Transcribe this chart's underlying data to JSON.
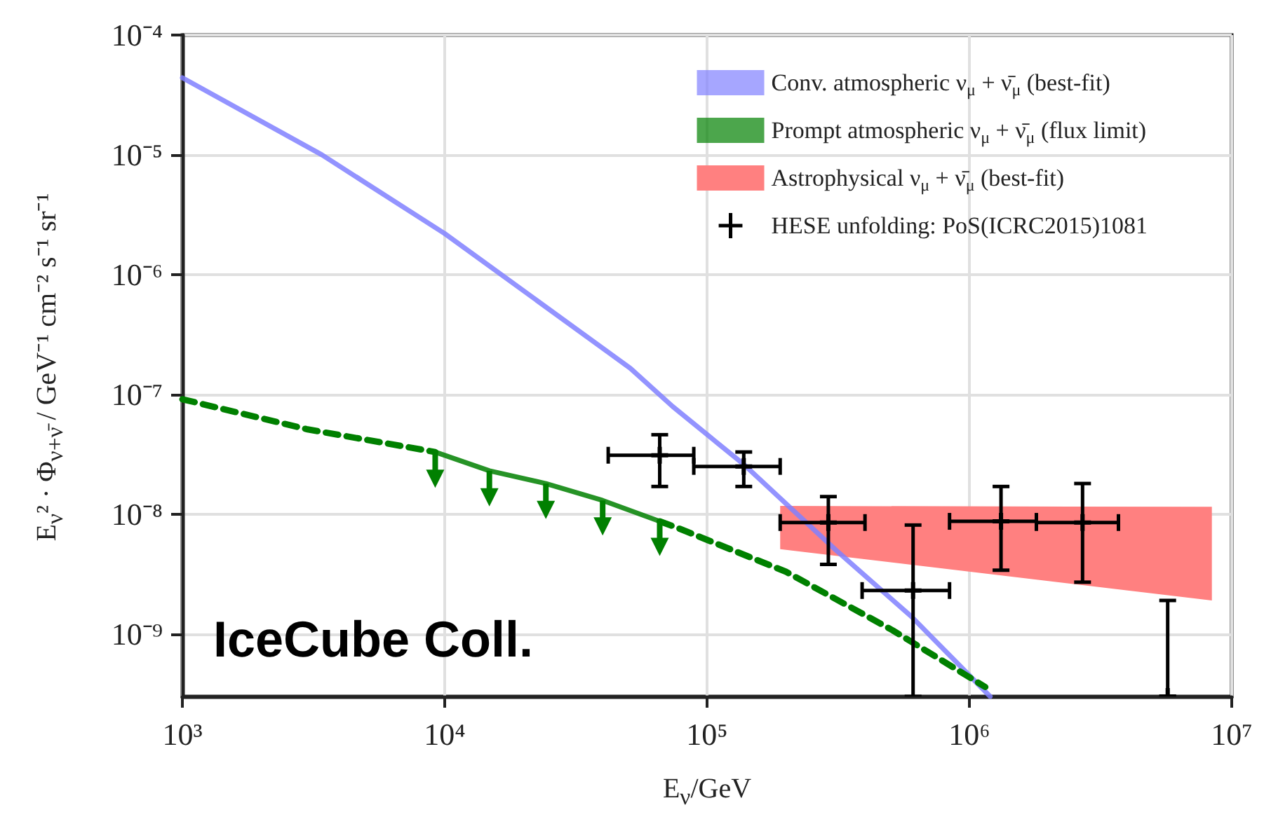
{
  "chart_data": {
    "type": "line",
    "xlabel": "E$_{ν}$/GeV",
    "ylabel": "E$_{ν}$² · Φ$_{ν+ν̄}$ / GeV⁻¹ cm⁻² s⁻¹ sr⁻¹",
    "annotations": [
      "IceCube Coll."
    ],
    "log": "xy",
    "grid": true,
    "legend": "top right",
    "xlim": [
      1000,
      10000000
    ],
    "ylim": [
      3e-10,
      0.0001
    ],
    "xticks": [
      {
        "value": 1000,
        "label": "10³"
      },
      {
        "value": 10000,
        "label": "10⁴"
      },
      {
        "value": 100000,
        "label": "10⁵"
      },
      {
        "value": 1000000,
        "label": "10⁶"
      },
      {
        "value": 10000000,
        "label": "10⁷"
      }
    ],
    "yticks": [
      {
        "value": 1e-09,
        "label": "10⁻⁹"
      },
      {
        "value": 1e-08,
        "label": "10⁻⁸"
      },
      {
        "value": 1e-07,
        "label": "10⁻⁷"
      },
      {
        "value": 1e-06,
        "label": "10⁻⁶"
      },
      {
        "value": 1e-05,
        "label": "10⁻⁵"
      },
      {
        "value": 0.0001,
        "label": "10⁻⁴"
      }
    ],
    "series": [
      {
        "name": "Conv. atmospheric ν$_{μ}$ + ν̄$_{μ}$ (best-fit)",
        "color": "#8080ff",
        "x": [
          1000,
          3400,
          10000,
          51000,
          74000,
          138000,
          310000,
          600000,
          1200000
        ],
        "values": [
          4.4e-05,
          1e-05,
          2.2e-06,
          1.65e-07,
          7.9e-08,
          2.6e-08,
          5e-09,
          1.4e-09,
          3e-10
        ]
      },
      {
        "color": "#008000",
        "line_style": "dashed",
        "x": [
          1000,
          3000,
          9200
        ],
        "values": [
          9.1e-08,
          5.1e-08,
          3.3e-08
        ]
      },
      {
        "color": "#008000",
        "line_style": "dashed",
        "x": [
          66000,
          78000,
          200000,
          510000,
          1150000
        ],
        "values": [
          8.7e-09,
          7.6e-09,
          3.3e-09,
          1.07e-09,
          3.6e-10
        ]
      },
      {
        "name": "Prompt atmospheric ν$_{μ}$ + ν̄$_{μ}$ (flux limit)",
        "color": "#008000",
        "line_style": "solid",
        "x": [
          9200,
          14800,
          24300,
          40000,
          66000
        ],
        "values": [
          3.3e-08,
          2.3e-08,
          1.8e-08,
          1.3e-08,
          8.7e-09
        ]
      },
      {
        "type": "scatter",
        "color": "#008000",
        "marker": "triangle",
        "x": [
          9200,
          14800,
          24300,
          40000,
          66000
        ],
        "values": [
          2e-08,
          1.4e-08,
          1.1e-08,
          8e-09,
          5.4e-09
        ],
        "errors": [
          [
            2e-08,
            3.3e-08
          ],
          [
            1.4e-08,
            2.3e-08
          ],
          [
            1.1e-08,
            1.8e-08
          ],
          [
            8e-09,
            1.3e-08
          ],
          [
            5.4e-09,
            8.7e-09
          ]
        ]
      },
      {
        "type": "area",
        "name": "Astrophysical ν$_{μ}$ + ν̄$_{μ}$ (best-fit)",
        "color": "#ff8080",
        "x": [
          190000,
          8400000
        ],
        "values": [
          null,
          null
        ],
        "lower": [
          5.1e-09,
          1.9e-09
        ],
        "upper": [
          1.17e-08,
          1.15e-08
        ]
      },
      {
        "type": "scatter",
        "name": "HESE unfolding: PoS(ICRC2015)1081",
        "color": "#000000",
        "marker": "cross",
        "x": [
          66000,
          138000,
          290000,
          610000,
          1320000,
          2700000,
          5700000
        ],
        "values": [
          3.1e-08,
          2.5e-08,
          8.5e-09,
          2.3e-09,
          8.7e-09,
          8.5e-09,
          3e-10
        ],
        "errors": [
          [
            1.7e-08,
            4.6e-08
          ],
          [
            1.7e-08,
            3.3e-08
          ],
          [
            3.8e-09,
            1.4e-08
          ],
          [
            3e-10,
            8.1e-09
          ],
          [
            3.4e-09,
            1.7e-08
          ],
          [
            2.7e-09,
            1.8e-08
          ],
          [
            3e-10,
            1.9e-09
          ]
        ],
        "xerrors": [
          [
            42000,
            89000
          ],
          [
            89000,
            190000
          ],
          [
            190000,
            400000
          ],
          [
            390000,
            840000
          ],
          [
            840000,
            1800000
          ],
          [
            1800000,
            3700000
          ],
          null
        ]
      }
    ]
  }
}
